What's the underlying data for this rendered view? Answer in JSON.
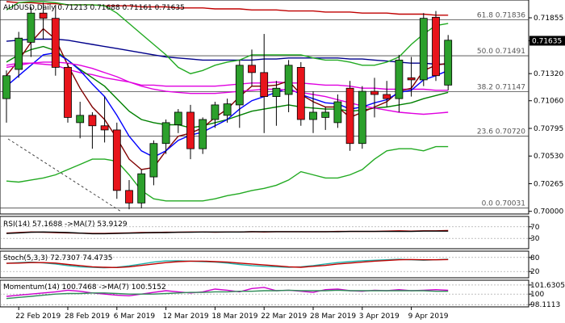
{
  "header": {
    "symbol": "AUDUSD",
    "timeframe": "Daily",
    "title_text": "AUDUSD,Daily  0.71213 0.71688 0.71161 0.71635"
  },
  "colors": {
    "bull": "#2ca02c",
    "bear": "#e8141b",
    "ma_blue": "#00008b",
    "ma_red": "#c00000",
    "ma_magenta": "#e000e0",
    "ma_green": "#008000",
    "ma_brown": "#800000",
    "bollinger": "#22aa22",
    "ma_fast_blue": "#0000ff",
    "fib_line": "#444444",
    "price_tag_bg": "#000000"
  },
  "chart_data": [
    {
      "type": "candlestick",
      "title": "AUDUSD,Daily  0.71213 0.71688 0.71161 0.71635",
      "y_ticks": [
        "0.71855",
        "0.71635",
        "0.71320",
        "0.71060",
        "0.70795",
        "0.70530",
        "0.70265",
        "0.70000"
      ],
      "ylim": [
        0.6999,
        0.7201
      ],
      "last_price": "0.71635",
      "x_labels": [
        "22 Feb 2019",
        "28 Feb 2019",
        "6 Mar 2019",
        "12 Mar 2019",
        "18 Mar 2019",
        "22 Mar 2019",
        "28 Mar 2019",
        "3 Apr 2019",
        "9 Apr 2019"
      ],
      "x_label_index": [
        1,
        5,
        9,
        13,
        17,
        21,
        25,
        29,
        33
      ],
      "fib_levels": [
        {
          "label": "61.8 0.71836",
          "value": 0.71836
        },
        {
          "label": "50.0 0.71491",
          "value": 0.71491
        },
        {
          "label": "38.2 0.71147",
          "value": 0.71147
        },
        {
          "label": "23.6 0.70720",
          "value": 0.7072
        },
        {
          "label": "0.0 0.70031",
          "value": 0.70031
        }
      ],
      "candles": [
        {
          "o": 0.7108,
          "h": 0.7135,
          "l": 0.7085,
          "c": 0.713
        },
        {
          "o": 0.7136,
          "h": 0.7172,
          "l": 0.7128,
          "c": 0.7166
        },
        {
          "o": 0.7162,
          "h": 0.7196,
          "l": 0.7148,
          "c": 0.719
        },
        {
          "o": 0.719,
          "h": 0.72,
          "l": 0.7165,
          "c": 0.7185
        },
        {
          "o": 0.7185,
          "h": 0.7198,
          "l": 0.713,
          "c": 0.7138
        },
        {
          "o": 0.7138,
          "h": 0.7142,
          "l": 0.7085,
          "c": 0.709
        },
        {
          "o": 0.7085,
          "h": 0.7105,
          "l": 0.707,
          "c": 0.7092
        },
        {
          "o": 0.7092,
          "h": 0.7095,
          "l": 0.706,
          "c": 0.7082
        },
        {
          "o": 0.7082,
          "h": 0.711,
          "l": 0.7066,
          "c": 0.7078
        },
        {
          "o": 0.7078,
          "h": 0.7085,
          "l": 0.7012,
          "c": 0.702
        },
        {
          "o": 0.702,
          "h": 0.703,
          "l": 0.7002,
          "c": 0.7008
        },
        {
          "o": 0.7008,
          "h": 0.704,
          "l": 0.7003,
          "c": 0.7036
        },
        {
          "o": 0.7033,
          "h": 0.7068,
          "l": 0.7025,
          "c": 0.7065
        },
        {
          "o": 0.7065,
          "h": 0.7088,
          "l": 0.7055,
          "c": 0.7085
        },
        {
          "o": 0.7083,
          "h": 0.7098,
          "l": 0.7075,
          "c": 0.7095
        },
        {
          "o": 0.7095,
          "h": 0.7102,
          "l": 0.705,
          "c": 0.706
        },
        {
          "o": 0.706,
          "h": 0.709,
          "l": 0.7055,
          "c": 0.7088
        },
        {
          "o": 0.7088,
          "h": 0.7105,
          "l": 0.708,
          "c": 0.7102
        },
        {
          "o": 0.7092,
          "h": 0.7108,
          "l": 0.7085,
          "c": 0.7103
        },
        {
          "o": 0.7102,
          "h": 0.7145,
          "l": 0.708,
          "c": 0.714
        },
        {
          "o": 0.714,
          "h": 0.7155,
          "l": 0.712,
          "c": 0.7133
        },
        {
          "o": 0.7133,
          "h": 0.717,
          "l": 0.7075,
          "c": 0.711
        },
        {
          "o": 0.711,
          "h": 0.7125,
          "l": 0.7082,
          "c": 0.7118
        },
        {
          "o": 0.7112,
          "h": 0.7145,
          "l": 0.7095,
          "c": 0.714
        },
        {
          "o": 0.7138,
          "h": 0.7143,
          "l": 0.7082,
          "c": 0.7088
        },
        {
          "o": 0.7088,
          "h": 0.7115,
          "l": 0.7075,
          "c": 0.7095
        },
        {
          "o": 0.709,
          "h": 0.71,
          "l": 0.7078,
          "c": 0.7095
        },
        {
          "o": 0.7085,
          "h": 0.7112,
          "l": 0.708,
          "c": 0.7105
        },
        {
          "o": 0.7118,
          "h": 0.7125,
          "l": 0.7058,
          "c": 0.7065
        },
        {
          "o": 0.7065,
          "h": 0.712,
          "l": 0.706,
          "c": 0.7115
        },
        {
          "o": 0.7115,
          "h": 0.7128,
          "l": 0.709,
          "c": 0.7112
        },
        {
          "o": 0.7112,
          "h": 0.7125,
          "l": 0.71,
          "c": 0.7108
        },
        {
          "o": 0.7108,
          "h": 0.715,
          "l": 0.7095,
          "c": 0.7145
        },
        {
          "o": 0.7128,
          "h": 0.7148,
          "l": 0.711,
          "c": 0.7126
        },
        {
          "o": 0.7126,
          "h": 0.719,
          "l": 0.712,
          "c": 0.7185
        },
        {
          "o": 0.7186,
          "h": 0.7192,
          "l": 0.7125,
          "c": 0.713
        },
        {
          "o": 0.7121,
          "h": 0.7169,
          "l": 0.7116,
          "c": 0.7164
        }
      ],
      "series": [
        {
          "color": "#00008b",
          "values": [
            0.7163,
            0.7164,
            0.7165,
            0.7165,
            0.7165,
            0.7164,
            0.7162,
            0.716,
            0.7158,
            0.7156,
            0.7154,
            0.7152,
            0.715,
            0.7148,
            0.7147,
            0.7146,
            0.7145,
            0.7145,
            0.7145,
            0.7145,
            0.7145,
            0.7146,
            0.7146,
            0.7147,
            0.7147,
            0.7147,
            0.7147,
            0.7147,
            0.7146,
            0.7146,
            0.7145,
            0.7144,
            0.7143,
            0.7142,
            0.7142,
            0.7141,
            0.7141
          ]
        },
        {
          "color": "#c00000",
          "values": [
            0.7201,
            0.72,
            0.72,
            0.7199,
            0.7199,
            0.7198,
            0.7198,
            0.7198,
            0.7197,
            0.7197,
            0.7197,
            0.7196,
            0.7196,
            0.7196,
            0.7195,
            0.7195,
            0.7195,
            0.7194,
            0.7194,
            0.7194,
            0.7193,
            0.7193,
            0.7193,
            0.7192,
            0.7192,
            0.7192,
            0.7191,
            0.7191,
            0.7191,
            0.719,
            0.719,
            0.719,
            0.7189,
            0.7189,
            0.7189,
            0.7188,
            0.7188
          ]
        },
        {
          "color": "#e000e0",
          "values": [
            0.714,
            0.7142,
            0.7142,
            0.7141,
            0.714,
            0.7136,
            0.7133,
            0.7131,
            0.7128,
            0.7126,
            0.7124,
            0.7121,
            0.7121,
            0.712,
            0.712,
            0.712,
            0.712,
            0.712,
            0.7121,
            0.7122,
            0.7123,
            0.7123,
            0.7124,
            0.7123,
            0.7123,
            0.7122,
            0.7121,
            0.7121,
            0.712,
            0.7118,
            0.7118,
            0.7117,
            0.7117,
            0.7117,
            0.7117,
            0.7116,
            0.7116
          ]
        },
        {
          "color": "#008000",
          "values": [
            0.7143,
            0.715,
            0.7155,
            0.7158,
            0.7154,
            0.7145,
            0.7136,
            0.7128,
            0.712,
            0.7108,
            0.7096,
            0.7088,
            0.7085,
            0.7083,
            0.7083,
            0.708,
            0.7082,
            0.7085,
            0.7088,
            0.7092,
            0.7096,
            0.7098,
            0.71,
            0.7102,
            0.71,
            0.7099,
            0.7098,
            0.7098,
            0.7096,
            0.7097,
            0.7099,
            0.71,
            0.7102,
            0.7104,
            0.7108,
            0.7111,
            0.7114
          ]
        },
        {
          "color": "#800000",
          "values": [
            0.713,
            0.7145,
            0.7162,
            0.7175,
            0.7165,
            0.714,
            0.7118,
            0.71,
            0.7088,
            0.707,
            0.705,
            0.704,
            0.7042,
            0.7058,
            0.7072,
            0.7075,
            0.708,
            0.709,
            0.7098,
            0.711,
            0.712,
            0.712,
            0.7121,
            0.7125,
            0.7112,
            0.7105,
            0.71,
            0.71,
            0.709,
            0.7095,
            0.71,
            0.7105,
            0.7115,
            0.7118,
            0.7135,
            0.714,
            0.7142
          ]
        },
        {
          "color": "#0000ff",
          "values": [
            0.712,
            0.713,
            0.714,
            0.715,
            0.7152,
            0.7145,
            0.7135,
            0.7122,
            0.711,
            0.7092,
            0.7072,
            0.7058,
            0.7052,
            0.7058,
            0.7068,
            0.7073,
            0.7076,
            0.7082,
            0.7088,
            0.7098,
            0.7106,
            0.711,
            0.7114,
            0.7118,
            0.7112,
            0.7108,
            0.7104,
            0.7103,
            0.7098,
            0.71,
            0.7104,
            0.7107,
            0.7114,
            0.7116,
            0.7126,
            0.713,
            0.7135
          ]
        },
        {
          "color": "#22aa22",
          "values": [
            0.7193,
            0.72,
            0.7201,
            0.7201,
            0.72,
            0.7198,
            0.7198,
            0.7198,
            0.7197,
            0.719,
            0.718,
            0.717,
            0.716,
            0.715,
            0.7138,
            0.7132,
            0.7135,
            0.714,
            0.7143,
            0.7145,
            0.715,
            0.715,
            0.715,
            0.715,
            0.715,
            0.7147,
            0.7145,
            0.7145,
            0.7143,
            0.714,
            0.714,
            0.7143,
            0.7148,
            0.716,
            0.717,
            0.7178,
            0.718
          ]
        },
        {
          "color": "#22aa22",
          "values": [
            0.7029,
            0.7028,
            0.703,
            0.7032,
            0.7035,
            0.704,
            0.7045,
            0.705,
            0.705,
            0.7048,
            0.7035,
            0.702,
            0.7012,
            0.701,
            0.701,
            0.701,
            0.701,
            0.7012,
            0.7015,
            0.7017,
            0.702,
            0.7022,
            0.7025,
            0.703,
            0.7038,
            0.7035,
            0.7032,
            0.7032,
            0.7035,
            0.704,
            0.705,
            0.7058,
            0.706,
            0.706,
            0.7058,
            0.7062,
            0.7062
          ]
        },
        {
          "color": "#e000e0",
          "values": [
            0.7138,
            0.714,
            0.7142,
            0.7143,
            0.7143,
            0.7142,
            0.714,
            0.7137,
            0.7133,
            0.7129,
            0.7124,
            0.712,
            0.7117,
            0.7115,
            0.7114,
            0.7113,
            0.7113,
            0.7113,
            0.7114,
            0.7115,
            0.7116,
            0.7117,
            0.7117,
            0.7116,
            0.7114,
            0.7112,
            0.711,
            0.7107,
            0.7104,
            0.7101,
            0.7099,
            0.7097,
            0.7095,
            0.7094,
            0.7093,
            0.7094,
            0.7095
          ]
        }
      ]
    },
    {
      "type": "line",
      "title": "RSI(14) 57.1688 ->MA(7) 53.9129",
      "y_ticks": [
        "70",
        "30"
      ],
      "ylim": [
        0,
        100
      ],
      "series": [
        {
          "color": "#c00000",
          "values": [
            48,
            50,
            52,
            51,
            50,
            49,
            48,
            47,
            47,
            48,
            49,
            50,
            50,
            51,
            51,
            52,
            52,
            51,
            52,
            52,
            53,
            52,
            53,
            53,
            53,
            53,
            53,
            54,
            54,
            54,
            54,
            55,
            56,
            55,
            56,
            56,
            57
          ]
        },
        {
          "color": "#000000",
          "values": [
            47,
            49,
            51,
            52,
            51,
            50,
            48,
            46,
            46,
            47,
            48,
            49,
            50,
            50,
            51,
            51,
            52,
            52,
            52,
            52,
            53,
            53,
            53,
            53,
            53,
            53,
            53,
            53,
            54,
            54,
            54,
            54,
            54,
            54,
            55,
            55,
            55
          ]
        }
      ]
    },
    {
      "type": "line",
      "title": "Stoch(5,3,3) 72.7307 74.4735",
      "y_ticks": [
        "80",
        "20"
      ],
      "ylim": [
        0,
        100
      ],
      "series": [
        {
          "color": "#20b2aa",
          "values": [
            55,
            58,
            60,
            57,
            52,
            45,
            40,
            38,
            36,
            38,
            44,
            52,
            60,
            65,
            66,
            64,
            62,
            60,
            56,
            50,
            45,
            42,
            40,
            38,
            40,
            45,
            52,
            58,
            62,
            66,
            68,
            70,
            72,
            70,
            68,
            70,
            72
          ]
        },
        {
          "color": "#c00000",
          "values": [
            55,
            56,
            58,
            58,
            56,
            50,
            45,
            40,
            38,
            37,
            40,
            46,
            52,
            58,
            62,
            64,
            64,
            62,
            60,
            56,
            52,
            48,
            44,
            40,
            38,
            42,
            46,
            52,
            56,
            60,
            64,
            67,
            70,
            71,
            70,
            70,
            71
          ]
        }
      ]
    },
    {
      "type": "line",
      "title": "Momentum(14) 100.7468 ->MA(7) 100.5152",
      "y_ticks": [
        "101.6305",
        "100",
        "98.1113"
      ],
      "ylim": [
        98,
        102.2
      ],
      "series": [
        {
          "color": "#cc00cc",
          "values": [
            99.6,
            99.8,
            100.0,
            100.2,
            100.4,
            100.7,
            100.5,
            100.2,
            100.0,
            99.8,
            99.7,
            100.0,
            100.3,
            100.6,
            100.4,
            100.2,
            100.4,
            100.9,
            100.7,
            100.4,
            101.0,
            101.2,
            100.6,
            100.7,
            100.5,
            100.3,
            100.8,
            100.9,
            100.6,
            100.5,
            100.7,
            100.6,
            100.8,
            100.6,
            100.7,
            100.8,
            100.7
          ]
        },
        {
          "color": "#2e8b57",
          "values": [
            99.2,
            99.4,
            99.6,
            99.8,
            100.0,
            100.1,
            100.1,
            100.2,
            100.2,
            100.1,
            100.0,
            100.0,
            100.0,
            100.1,
            100.2,
            100.3,
            100.3,
            100.4,
            100.4,
            100.5,
            100.5,
            100.6,
            100.6,
            100.7,
            100.6,
            100.6,
            100.6,
            100.7,
            100.6,
            100.6,
            100.6,
            100.6,
            100.6,
            100.6,
            100.6,
            100.5,
            100.5
          ]
        }
      ]
    }
  ],
  "panes": {
    "rsi_label": "RSI(14) 57.1688 ->MA(7) 53.9129",
    "stoch_label": "Stoch(5,3,3) 72.7307 74.4735",
    "momentum_label": "Momentum(14) 100.7468 ->MA(7) 100.5152"
  }
}
